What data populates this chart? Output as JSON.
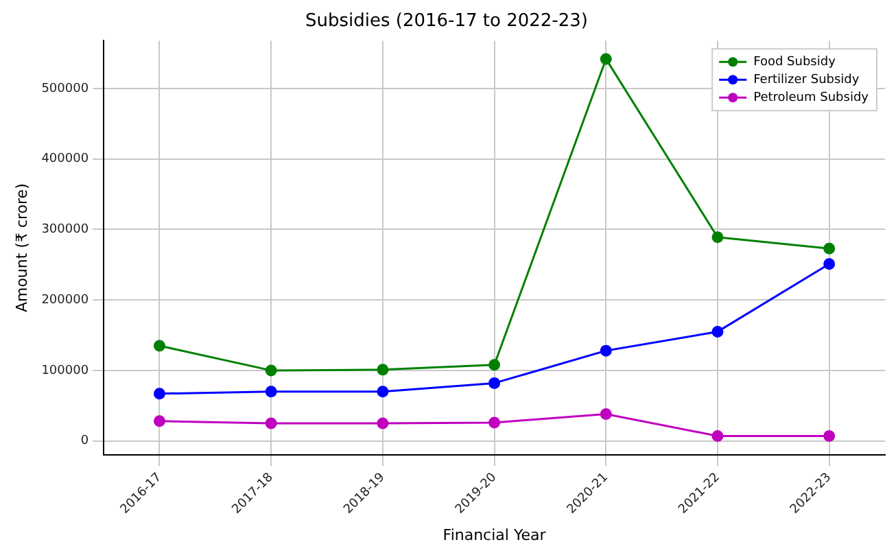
{
  "chart_data": {
    "type": "line",
    "title": "Subsidies (2016-17 to 2022-23)",
    "xlabel": "Financial Year",
    "ylabel": "Amount (₹ crore)",
    "categories": [
      "2016-17",
      "2017-18",
      "2018-19",
      "2019-20",
      "2020-21",
      "2021-22",
      "2022-23"
    ],
    "series": [
      {
        "name": "Food Subsidy",
        "color": "#008000",
        "values": [
          135000,
          100000,
          101000,
          108000,
          542000,
          289000,
          273000
        ]
      },
      {
        "name": "Fertilizer Subsidy",
        "color": "#0000ff",
        "values": [
          67000,
          70000,
          70000,
          82000,
          128000,
          155000,
          251000
        ]
      },
      {
        "name": "Petroleum Subsidy",
        "color": "#bf00bf",
        "values": [
          28000,
          25000,
          25000,
          26000,
          38000,
          7000,
          7000
        ]
      }
    ],
    "ylim": [
      -20000,
      568000
    ],
    "yticks": [
      0,
      100000,
      200000,
      300000,
      400000,
      500000
    ],
    "grid": true,
    "legend": "top right",
    "marker": "circle",
    "line_style": "solid"
  }
}
